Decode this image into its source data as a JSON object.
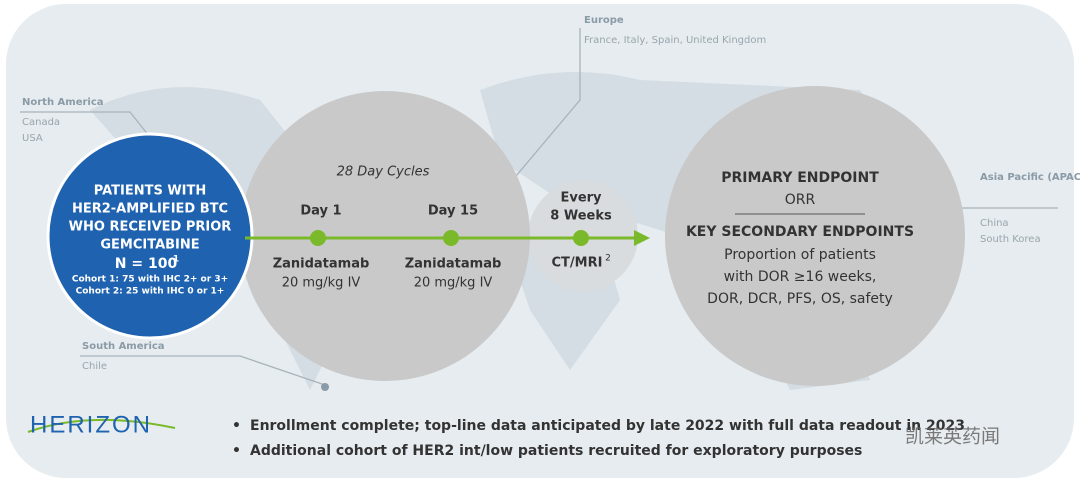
{
  "regions": [
    {
      "name": "North America",
      "countries": [
        "Canada",
        "USA"
      ]
    },
    {
      "name": "Europe",
      "countries": [
        "France, Italy, Spain, United Kingdom"
      ]
    },
    {
      "name": "South America",
      "countries": [
        "Chile"
      ]
    },
    {
      "name": "Asia Pacific (APAC)",
      "countries": [
        "China",
        "South Korea"
      ]
    }
  ],
  "patients": {
    "lines": [
      "PATIENTS WITH",
      "HER2-AMPLIFIED BTC",
      "WHO RECEIVED PRIOR",
      "GEMCITABINE"
    ],
    "n": "N = 100",
    "n_note": "1",
    "cohorts": [
      "Cohort 1: 75 with IHC 2+ or 3+",
      "Cohort 2: 25 with IHC 0 or 1+"
    ]
  },
  "cycle": {
    "title": "28 Day Cycles",
    "doses": [
      {
        "day": "Day 1",
        "drug": "Zanidatamab",
        "dose": "20 mg/kg IV"
      },
      {
        "day": "Day 15",
        "drug": "Zanidatamab",
        "dose": "20 mg/kg IV"
      }
    ]
  },
  "imaging": {
    "every": [
      "Every",
      "8 Weeks"
    ],
    "label": "CT/MRI",
    "note": "2"
  },
  "endpoints": {
    "primary_title": "PRIMARY ENDPOINT",
    "primary": "ORR",
    "secondary_title": "KEY SECONDARY ENDPOINTS",
    "secondary": [
      "Proportion of patients",
      "with DOR ≥16 weeks,",
      "DOR, DCR, PFS, OS, safety"
    ]
  },
  "logo": "HERIZON",
  "bullets": [
    "Enrollment complete; top-line data anticipated by late 2022 with full data readout in 2023",
    "Additional cohort of HER2 int/low patients recruited for exploratory purposes"
  ],
  "watermark": "凯莱英药闻"
}
